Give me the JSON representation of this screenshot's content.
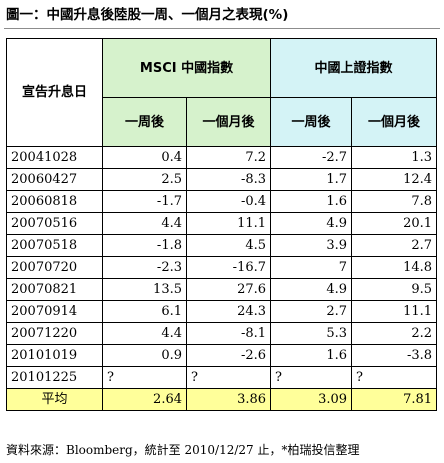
{
  "title": "圖一：中國升息後陸股一周、一個月之表現(%)",
  "table": {
    "date_header": "宣告升息日",
    "groups": [
      "MSCI 中國指數",
      "中國上證指數"
    ],
    "subheaders": [
      "一周後",
      "一個月後",
      "一周後",
      "一個月後"
    ],
    "rows": [
      {
        "date": "20041028",
        "values": [
          "0.4",
          "7.2",
          "-2.7",
          "1.3"
        ]
      },
      {
        "date": "20060427",
        "values": [
          "2.5",
          "-8.3",
          "1.7",
          "12.4"
        ]
      },
      {
        "date": "20060818",
        "values": [
          "-1.7",
          "-0.4",
          "1.6",
          "7.8"
        ]
      },
      {
        "date": "20070516",
        "values": [
          "4.4",
          "11.1",
          "4.9",
          "20.1"
        ]
      },
      {
        "date": "20070518",
        "values": [
          "-1.8",
          "4.5",
          "3.9",
          "2.7"
        ]
      },
      {
        "date": "20070720",
        "values": [
          "-2.3",
          "-16.7",
          "7",
          "14.8"
        ]
      },
      {
        "date": "20070821",
        "values": [
          "13.5",
          "27.6",
          "4.9",
          "9.5"
        ]
      },
      {
        "date": "20070914",
        "values": [
          "6.1",
          "24.3",
          "2.7",
          "11.1"
        ]
      },
      {
        "date": "20071220",
        "values": [
          "4.4",
          "-8.1",
          "5.3",
          "2.2"
        ]
      },
      {
        "date": "20101019",
        "values": [
          "0.9",
          "-2.6",
          "1.6",
          "-3.8"
        ]
      },
      {
        "date": "20101225",
        "values": [
          "?",
          "?",
          "?",
          "?"
        ]
      }
    ],
    "average": {
      "label": "平均",
      "values": [
        "2.64",
        "3.86",
        "3.09",
        "7.81"
      ]
    }
  },
  "source": "資料來源：Bloomberg，統計至 2010/12/27 止，*柏瑞投信整理",
  "colors": {
    "msci_header": "#d6f2cc",
    "shanghai_header": "#d4f3f6",
    "average_row": "#ffff9a"
  }
}
